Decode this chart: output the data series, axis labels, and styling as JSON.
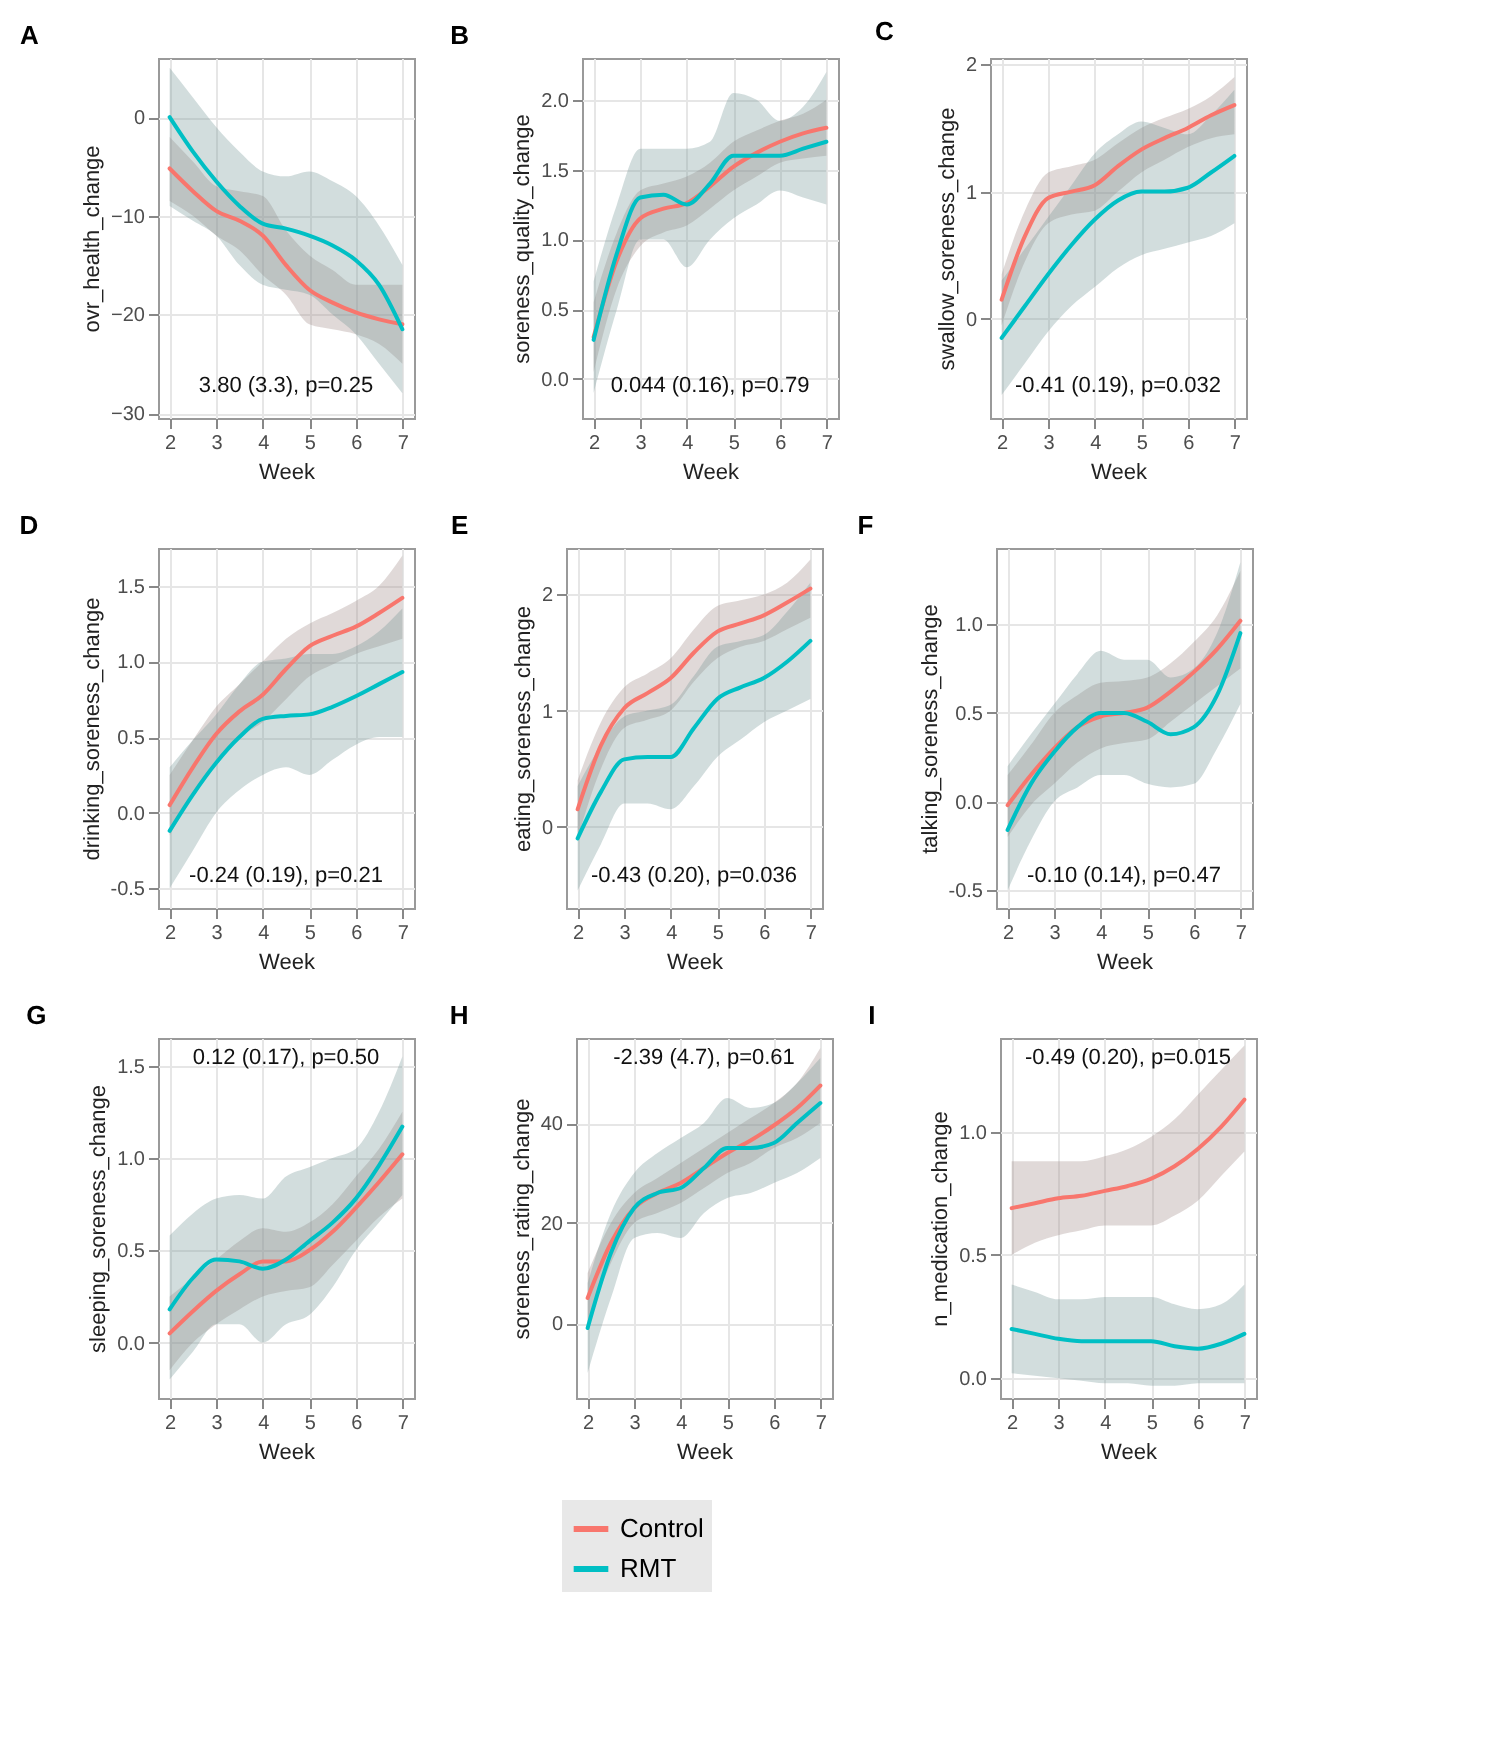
{
  "chart_data": [
    {
      "type": "line",
      "title": "A",
      "xlabel": "Week",
      "ylabel": "ovr_health_change",
      "annotations": [
        "3.80 (3.3), p=0.25"
      ],
      "xlim": [
        1.75,
        7.25
      ],
      "xticks": [
        2,
        3,
        4,
        5,
        6,
        7
      ],
      "ylim": [
        -30.5,
        6
      ],
      "yticks": [
        -30,
        -20,
        -10,
        0
      ],
      "grid": true,
      "legend": "bottom",
      "x": [
        2,
        2.5,
        3,
        3.5,
        4,
        4.5,
        5,
        5.5,
        6,
        6.5,
        7
      ],
      "series": [
        {
          "name": "Control",
          "color": "#f8766d",
          "values": [
            -5.2,
            -7.5,
            -9.5,
            -10.5,
            -12,
            -15,
            -17.5,
            -18.8,
            -19.8,
            -20.5,
            -21
          ],
          "lower": [
            -8.5,
            -10,
            -12,
            -13.5,
            -16,
            -18,
            -21,
            -21.5,
            -22,
            -23,
            -25
          ],
          "upper": [
            -2,
            -4.5,
            -7,
            -7.5,
            -8,
            -11.5,
            -14,
            -15.5,
            -17,
            -17,
            -17
          ]
        },
        {
          "name": "RMT",
          "color": "#00bfc4",
          "values": [
            0,
            -3.5,
            -6.5,
            -9,
            -10.8,
            -11.3,
            -12,
            -13,
            -14.5,
            -17,
            -21.5
          ],
          "lower": [
            -9,
            -10.5,
            -12,
            -15,
            -17,
            -17.5,
            -18,
            -20,
            -22,
            -25,
            -28
          ],
          "upper": [
            5,
            2,
            -1,
            -3.5,
            -5.5,
            -6,
            -5.5,
            -6.5,
            -8,
            -11,
            -15
          ]
        }
      ]
    },
    {
      "type": "line",
      "title": "B",
      "xlabel": "Week",
      "ylabel": "soreness_quality_change",
      "annotations": [
        "0.044 (0.16), p=0.79"
      ],
      "xlim": [
        1.75,
        7.25
      ],
      "xticks": [
        2,
        3,
        4,
        5,
        6,
        7
      ],
      "ylim": [
        -0.28,
        2.3
      ],
      "yticks": [
        {
          "value": 0,
          "label": "0.0"
        },
        {
          "value": 0.5,
          "label": "0.5"
        },
        {
          "value": 1,
          "label": "1.0"
        },
        {
          "value": 1.5,
          "label": "1.5"
        },
        {
          "value": 2,
          "label": "2.0"
        }
      ],
      "grid": true,
      "legend": "bottom",
      "x": [
        2,
        2.5,
        3,
        3.5,
        4,
        4.5,
        5,
        5.5,
        6,
        6.5,
        7
      ],
      "series": [
        {
          "name": "Control",
          "color": "#f8766d",
          "values": [
            0.3,
            0.85,
            1.15,
            1.22,
            1.26,
            1.38,
            1.52,
            1.62,
            1.7,
            1.76,
            1.8
          ],
          "lower": [
            0.05,
            0.65,
            0.95,
            1.05,
            1.1,
            1.22,
            1.35,
            1.45,
            1.55,
            1.58,
            1.6
          ],
          "upper": [
            0.55,
            1.05,
            1.35,
            1.4,
            1.45,
            1.55,
            1.7,
            1.78,
            1.85,
            1.9,
            2.0
          ]
        },
        {
          "name": "RMT",
          "color": "#00bfc4",
          "values": [
            0.28,
            0.9,
            1.3,
            1.32,
            1.25,
            1.4,
            1.6,
            1.6,
            1.6,
            1.65,
            1.7
          ],
          "lower": [
            -0.1,
            0.5,
            1.0,
            1.0,
            0.8,
            1.0,
            1.15,
            1.25,
            1.35,
            1.3,
            1.25
          ],
          "upper": [
            0.7,
            1.25,
            1.65,
            1.65,
            1.65,
            1.7,
            2.05,
            2.0,
            1.85,
            1.95,
            2.2
          ]
        }
      ]
    },
    {
      "type": "line",
      "title": "C",
      "xlabel": "Week",
      "ylabel": "swallow_soreness_change",
      "annotations": [
        "-0.41 (0.19), p=0.032"
      ],
      "xlim": [
        1.75,
        7.25
      ],
      "xticks": [
        2,
        3,
        4,
        5,
        6,
        7
      ],
      "ylim": [
        -0.78,
        2.05
      ],
      "yticks": [
        {
          "value": 0,
          "label": "0"
        },
        {
          "value": 1,
          "label": "1"
        },
        {
          "value": 2,
          "label": "2"
        }
      ],
      "grid": true,
      "legend": "bottom",
      "x": [
        2,
        2.5,
        3,
        3.5,
        4,
        4.5,
        5,
        5.5,
        6,
        6.5,
        7
      ],
      "series": [
        {
          "name": "Control",
          "color": "#f8766d",
          "values": [
            0.15,
            0.65,
            0.95,
            1.0,
            1.05,
            1.2,
            1.33,
            1.42,
            1.5,
            1.6,
            1.68
          ],
          "lower": [
            -0.05,
            0.45,
            0.75,
            0.82,
            0.85,
            1.0,
            1.15,
            1.25,
            1.35,
            1.42,
            1.45
          ],
          "upper": [
            0.35,
            0.85,
            1.15,
            1.2,
            1.25,
            1.38,
            1.5,
            1.58,
            1.65,
            1.75,
            1.9
          ]
        },
        {
          "name": "RMT",
          "color": "#00bfc4",
          "values": [
            -0.15,
            0.1,
            0.35,
            0.58,
            0.78,
            0.93,
            1.0,
            1.0,
            1.03,
            1.15,
            1.28
          ],
          "lower": [
            -0.6,
            -0.35,
            -0.1,
            0.1,
            0.25,
            0.4,
            0.5,
            0.55,
            0.6,
            0.65,
            0.75
          ],
          "upper": [
            0.3,
            0.55,
            0.8,
            1.05,
            1.3,
            1.45,
            1.55,
            1.5,
            1.45,
            1.6,
            1.8
          ]
        }
      ]
    },
    {
      "type": "line",
      "title": "D",
      "xlabel": "Week",
      "ylabel": "drinking_soreness_change",
      "annotations": [
        "-0.24 (0.19), p=0.21"
      ],
      "xlim": [
        1.75,
        7.25
      ],
      "xticks": [
        2,
        3,
        4,
        5,
        6,
        7
      ],
      "ylim": [
        -0.63,
        1.75
      ],
      "yticks": [
        {
          "value": -0.5,
          "label": "-0.5"
        },
        {
          "value": 0,
          "label": "0.0"
        },
        {
          "value": 0.5,
          "label": "0.5"
        },
        {
          "value": 1,
          "label": "1.0"
        },
        {
          "value": 1.5,
          "label": "1.5"
        }
      ],
      "grid": true,
      "legend": "bottom",
      "x": [
        2,
        2.5,
        3,
        3.5,
        4,
        4.5,
        5,
        5.5,
        6,
        6.5,
        7
      ],
      "series": [
        {
          "name": "Control",
          "color": "#f8766d",
          "values": [
            0.05,
            0.3,
            0.52,
            0.67,
            0.78,
            0.95,
            1.1,
            1.17,
            1.23,
            1.32,
            1.42
          ],
          "lower": [
            -0.15,
            0.12,
            0.35,
            0.5,
            0.6,
            0.75,
            0.9,
            0.98,
            1.05,
            1.1,
            1.15
          ],
          "upper": [
            0.25,
            0.48,
            0.7,
            0.85,
            1.0,
            1.15,
            1.25,
            1.32,
            1.4,
            1.5,
            1.7
          ]
        },
        {
          "name": "RMT",
          "color": "#00bfc4",
          "values": [
            -0.12,
            0.12,
            0.33,
            0.5,
            0.62,
            0.64,
            0.65,
            0.7,
            0.77,
            0.85,
            0.93
          ],
          "lower": [
            -0.5,
            -0.25,
            0.0,
            0.15,
            0.25,
            0.3,
            0.25,
            0.35,
            0.45,
            0.5,
            0.5
          ],
          "upper": [
            0.3,
            0.48,
            0.65,
            0.85,
            1.0,
            1.02,
            1.05,
            1.05,
            1.1,
            1.2,
            1.35
          ]
        }
      ]
    },
    {
      "type": "line",
      "title": "E",
      "xlabel": "Week",
      "ylabel": "eating_soreness_change",
      "annotations": [
        "-0.43 (0.20), p=0.036"
      ],
      "xlim": [
        1.75,
        7.25
      ],
      "xticks": [
        2,
        3,
        4,
        5,
        6,
        7
      ],
      "ylim": [
        -0.7,
        2.4
      ],
      "yticks": [
        {
          "value": 0,
          "label": "0"
        },
        {
          "value": 1,
          "label": "1"
        },
        {
          "value": 2,
          "label": "2"
        }
      ],
      "grid": true,
      "legend": "bottom",
      "x": [
        2,
        2.5,
        3,
        3.5,
        4,
        4.5,
        5,
        5.5,
        6,
        6.5,
        7
      ],
      "series": [
        {
          "name": "Control",
          "color": "#f8766d",
          "values": [
            0.15,
            0.7,
            1.02,
            1.15,
            1.28,
            1.5,
            1.68,
            1.75,
            1.82,
            1.93,
            2.05
          ],
          "lower": [
            -0.1,
            0.5,
            0.85,
            0.92,
            1.0,
            1.25,
            1.45,
            1.55,
            1.6,
            1.7,
            1.8
          ],
          "upper": [
            0.4,
            0.9,
            1.2,
            1.32,
            1.45,
            1.7,
            1.9,
            1.95,
            2.0,
            2.1,
            2.3
          ]
        },
        {
          "name": "RMT",
          "color": "#00bfc4",
          "values": [
            -0.1,
            0.3,
            0.58,
            0.6,
            0.6,
            0.85,
            1.1,
            1.2,
            1.28,
            1.42,
            1.6
          ],
          "lower": [
            -0.55,
            -0.15,
            0.2,
            0.2,
            0.15,
            0.35,
            0.6,
            0.75,
            0.9,
            1.0,
            1.1
          ],
          "upper": [
            0.35,
            0.7,
            0.95,
            1.0,
            1.05,
            1.3,
            1.55,
            1.6,
            1.65,
            1.85,
            2.1
          ]
        }
      ]
    },
    {
      "type": "line",
      "title": "F",
      "xlabel": "Week",
      "ylabel": "talking_soreness_change",
      "annotations": [
        "-0.10  (0.14), p=0.47"
      ],
      "xlim": [
        1.75,
        7.25
      ],
      "xticks": [
        2,
        3,
        4,
        5,
        6,
        7
      ],
      "ylim": [
        -0.6,
        1.43
      ],
      "yticks": [
        {
          "value": -0.5,
          "label": "-0.5"
        },
        {
          "value": 0,
          "label": "0.0"
        },
        {
          "value": 0.5,
          "label": "0.5"
        },
        {
          "value": 1,
          "label": "1.0"
        }
      ],
      "grid": true,
      "legend": "bottom",
      "x": [
        2,
        2.5,
        3,
        3.5,
        4,
        4.5,
        5,
        5.5,
        6,
        6.5,
        7
      ],
      "series": [
        {
          "name": "Control",
          "color": "#f8766d",
          "values": [
            -0.02,
            0.15,
            0.3,
            0.42,
            0.48,
            0.5,
            0.53,
            0.62,
            0.73,
            0.86,
            1.02
          ],
          "lower": [
            -0.2,
            -0.02,
            0.1,
            0.22,
            0.3,
            0.33,
            0.35,
            0.45,
            0.55,
            0.65,
            0.75
          ],
          "upper": [
            0.15,
            0.32,
            0.5,
            0.6,
            0.67,
            0.68,
            0.7,
            0.78,
            0.9,
            1.05,
            1.3
          ]
        },
        {
          "name": "RMT",
          "color": "#00bfc4",
          "values": [
            -0.16,
            0.1,
            0.28,
            0.42,
            0.5,
            0.5,
            0.45,
            0.38,
            0.42,
            0.6,
            0.95
          ],
          "lower": [
            -0.5,
            -0.22,
            0.0,
            0.08,
            0.15,
            0.15,
            0.1,
            0.08,
            0.1,
            0.3,
            0.55
          ],
          "upper": [
            0.2,
            0.38,
            0.55,
            0.72,
            0.85,
            0.8,
            0.8,
            0.7,
            0.75,
            0.95,
            1.35
          ]
        }
      ]
    },
    {
      "type": "line",
      "title": "G",
      "xlabel": "Week",
      "ylabel": "sleeping_soreness_change",
      "annotations": [
        "0.12 (0.17), p=0.50"
      ],
      "xlim": [
        1.75,
        7.25
      ],
      "xticks": [
        2,
        3,
        4,
        5,
        6,
        7
      ],
      "ylim": [
        -0.3,
        1.65
      ],
      "yticks": [
        {
          "value": 0,
          "label": "0.0"
        },
        {
          "value": 0.5,
          "label": "0.5"
        },
        {
          "value": 1,
          "label": "1.0"
        },
        {
          "value": 1.5,
          "label": "1.5"
        }
      ],
      "grid": true,
      "legend": "bottom",
      "x": [
        2,
        2.5,
        3,
        3.5,
        4,
        4.5,
        5,
        5.5,
        6,
        6.5,
        7
      ],
      "series": [
        {
          "name": "Control",
          "color": "#f8766d",
          "values": [
            0.05,
            0.17,
            0.28,
            0.37,
            0.44,
            0.44,
            0.5,
            0.6,
            0.73,
            0.87,
            1.02
          ],
          "lower": [
            -0.15,
            0.0,
            0.1,
            0.18,
            0.25,
            0.28,
            0.3,
            0.42,
            0.55,
            0.68,
            0.78
          ],
          "upper": [
            0.25,
            0.35,
            0.45,
            0.55,
            0.62,
            0.6,
            0.65,
            0.75,
            0.9,
            1.05,
            1.25
          ]
        },
        {
          "name": "RMT",
          "color": "#00bfc4",
          "values": [
            0.18,
            0.35,
            0.45,
            0.44,
            0.4,
            0.45,
            0.55,
            0.65,
            0.78,
            0.96,
            1.17
          ],
          "lower": [
            -0.2,
            -0.05,
            0.1,
            0.1,
            0.0,
            0.1,
            0.15,
            0.3,
            0.5,
            0.65,
            0.8
          ],
          "upper": [
            0.58,
            0.7,
            0.78,
            0.8,
            0.78,
            0.9,
            0.95,
            1.0,
            1.05,
            1.25,
            1.55
          ]
        }
      ]
    },
    {
      "type": "line",
      "title": "H",
      "xlabel": "Week",
      "ylabel": "soreness_rating_change",
      "annotations": [
        "-2.39 (4.7), p=0.61"
      ],
      "xlim": [
        1.75,
        7.25
      ],
      "xticks": [
        2,
        3,
        4,
        5,
        6,
        7
      ],
      "ylim": [
        -15,
        57
      ],
      "yticks": [
        0,
        20,
        40
      ],
      "grid": true,
      "legend": "bottom",
      "x": [
        2,
        2.5,
        3,
        3.5,
        4,
        4.5,
        5,
        5.5,
        6,
        6.5,
        7
      ],
      "series": [
        {
          "name": "Control",
          "color": "#f8766d",
          "values": [
            5,
            16,
            23,
            26,
            28,
            31,
            34,
            36.5,
            39.5,
            43,
            47.5
          ],
          "lower": [
            0,
            12,
            20,
            22,
            24,
            27,
            30,
            32,
            35,
            37,
            40
          ],
          "upper": [
            10,
            20,
            26,
            29,
            32,
            35,
            38,
            41,
            44,
            48,
            55
          ]
        },
        {
          "name": "RMT",
          "color": "#00bfc4",
          "values": [
            -1,
            14,
            23,
            26,
            27,
            31,
            35,
            35,
            36,
            40,
            44
          ],
          "lower": [
            -10,
            5,
            17,
            18,
            17,
            22,
            25,
            26,
            28,
            30,
            33
          ],
          "upper": [
            8,
            22,
            30,
            34,
            37,
            40,
            45,
            43,
            44,
            48,
            53
          ]
        }
      ]
    },
    {
      "type": "line",
      "title": "I",
      "xlabel": "Week",
      "ylabel": "n_medication_change",
      "annotations": [
        "-0.49 (0.20), p=0.015"
      ],
      "xlim": [
        1.75,
        7.25
      ],
      "xticks": [
        2,
        3,
        4,
        5,
        6,
        7
      ],
      "ylim": [
        -0.08,
        1.38
      ],
      "yticks": [
        {
          "value": 0,
          "label": "0.0"
        },
        {
          "value": 0.5,
          "label": "0.5"
        },
        {
          "value": 1,
          "label": "1.0"
        }
      ],
      "grid": true,
      "legend": "bottom",
      "x": [
        2,
        2.5,
        3,
        3.5,
        4,
        4.5,
        5,
        5.5,
        6,
        6.5,
        7
      ],
      "series": [
        {
          "name": "Control",
          "color": "#f8766d",
          "values": [
            0.69,
            0.71,
            0.73,
            0.74,
            0.76,
            0.78,
            0.81,
            0.86,
            0.93,
            1.02,
            1.13
          ],
          "lower": [
            0.5,
            0.55,
            0.58,
            0.6,
            0.62,
            0.62,
            0.62,
            0.66,
            0.72,
            0.82,
            0.92
          ],
          "upper": [
            0.88,
            0.88,
            0.88,
            0.88,
            0.9,
            0.93,
            0.98,
            1.05,
            1.15,
            1.25,
            1.35
          ]
        },
        {
          "name": "RMT",
          "color": "#00bfc4",
          "values": [
            0.2,
            0.18,
            0.16,
            0.15,
            0.15,
            0.15,
            0.15,
            0.13,
            0.12,
            0.14,
            0.18
          ],
          "lower": [
            0.02,
            0.01,
            0.0,
            -0.01,
            -0.02,
            -0.02,
            -0.03,
            -0.03,
            -0.02,
            -0.02,
            -0.02
          ],
          "upper": [
            0.38,
            0.35,
            0.32,
            0.32,
            0.33,
            0.33,
            0.33,
            0.3,
            0.28,
            0.3,
            0.38
          ]
        }
      ]
    }
  ]
}
